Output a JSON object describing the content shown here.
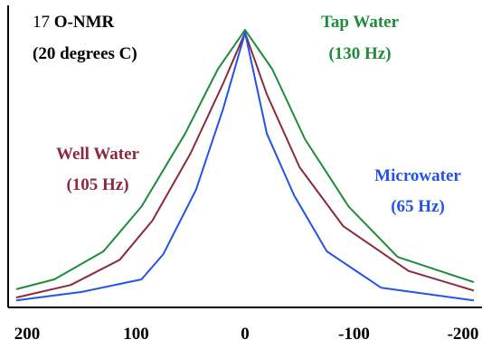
{
  "chart_data": {
    "type": "line",
    "title_lines": [
      "17 O-NMR",
      "(20 degrees C)"
    ],
    "title_superscript": "17",
    "title_main": " O-NMR",
    "xlabel": "",
    "ylabel": "",
    "xlim": [
      210,
      -210
    ],
    "ylim": [
      0,
      1
    ],
    "x_ticks": [
      200,
      100,
      0,
      -100,
      -200
    ],
    "x_tick_labels": [
      "200",
      "100",
      "0",
      "-100",
      "-200"
    ],
    "grid": false,
    "series": [
      {
        "name": "Tap Water",
        "linewidth_label": "(130 Hz)",
        "color": "#1e8c3a",
        "x": [
          210,
          175,
          130,
          95,
          55,
          25,
          0,
          -25,
          -55,
          -95,
          -140,
          -210
        ],
        "y": [
          0.065,
          0.1,
          0.2,
          0.36,
          0.62,
          0.85,
          0.99,
          0.85,
          0.6,
          0.36,
          0.18,
          0.09
        ]
      },
      {
        "name": "Well Water",
        "linewidth_label": "(105 Hz)",
        "color": "#8a2a3c",
        "x": [
          210,
          160,
          115,
          85,
          50,
          20,
          0,
          -20,
          -50,
          -90,
          -150,
          -210
        ],
        "y": [
          0.035,
          0.08,
          0.17,
          0.31,
          0.55,
          0.8,
          0.98,
          0.76,
          0.5,
          0.29,
          0.13,
          0.06
        ]
      },
      {
        "name": "Microwater",
        "linewidth_label": "(65 Hz)",
        "color": "#2353e6",
        "x": [
          210,
          150,
          95,
          75,
          45,
          20,
          0,
          -20,
          -45,
          -75,
          -125,
          -210
        ],
        "y": [
          0.025,
          0.055,
          0.1,
          0.19,
          0.42,
          0.71,
          0.98,
          0.62,
          0.4,
          0.2,
          0.07,
          0.025
        ]
      }
    ]
  }
}
